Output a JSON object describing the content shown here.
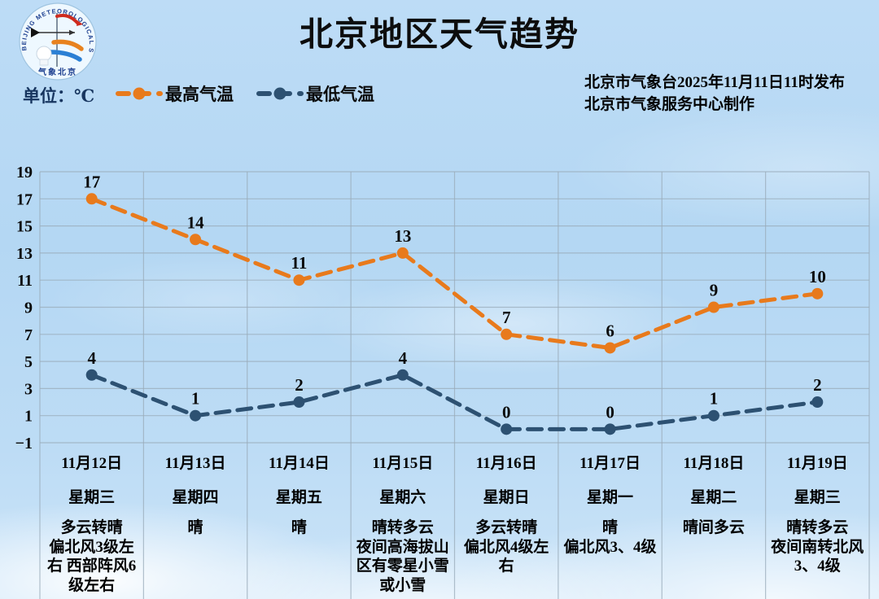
{
  "header": {
    "title": "北京地区天气趋势",
    "issued_line1": "北京市气象台2025年11月11日11时发布",
    "issued_line2": "北京市气象服务中心制作",
    "unit_label": "单位：℃",
    "logo": {
      "ring_text": "BEIJING METEOROLOGICAL SERVICE",
      "bottom_text": "气象北京"
    }
  },
  "legend": [
    {
      "label": "最高气温",
      "color": "#E87A1C"
    },
    {
      "label": "最低气温",
      "color": "#2D5172"
    }
  ],
  "chart_data": {
    "type": "line",
    "title": "北京地区天气趋势",
    "unit": "℃",
    "line_style": "dashed",
    "grid": true,
    "legend_position": "top-left",
    "categories": [
      "11月12日",
      "11月13日",
      "11月14日",
      "11月15日",
      "11月16日",
      "11月17日",
      "11月18日",
      "11月19日"
    ],
    "series": [
      {
        "name": "最高气温",
        "color": "#E87A1C",
        "values": [
          17,
          14,
          11,
          13,
          7,
          6,
          9,
          10
        ]
      },
      {
        "name": "最低气温",
        "color": "#2D5172",
        "values": [
          4,
          1,
          2,
          4,
          0,
          0,
          1,
          2
        ]
      }
    ],
    "ylim": [
      -1,
      19
    ],
    "ytick_step": 2,
    "yticks": [
      {
        "value": 19,
        "label": "19"
      },
      {
        "value": 17,
        "label": "17"
      },
      {
        "value": 15,
        "label": "15"
      },
      {
        "value": 13,
        "label": "13"
      },
      {
        "value": 11,
        "label": "11"
      },
      {
        "value": 9,
        "label": "9"
      },
      {
        "value": 7,
        "label": "7"
      },
      {
        "value": 5,
        "label": "5"
      },
      {
        "value": 3,
        "label": "3"
      },
      {
        "value": 1,
        "label": "1"
      },
      {
        "value": -1,
        "label": "−1"
      }
    ]
  },
  "days": [
    {
      "date": "11月12日",
      "week": "星期三",
      "weather": "多云转晴\n偏北风3级左右  西部阵风6级左右"
    },
    {
      "date": "11月13日",
      "week": "星期四",
      "weather": "晴"
    },
    {
      "date": "11月14日",
      "week": "星期五",
      "weather": "晴"
    },
    {
      "date": "11月15日",
      "week": "星期六",
      "weather": "晴转多云\n夜间高海拔山区有零星小雪或小雪"
    },
    {
      "date": "11月16日",
      "week": "星期日",
      "weather": "多云转晴\n偏北风4级左右"
    },
    {
      "date": "11月17日",
      "week": "星期一",
      "weather": "晴\n偏北风3、4级"
    },
    {
      "date": "11月18日",
      "week": "星期二",
      "weather": "晴间多云"
    },
    {
      "date": "11月19日",
      "week": "星期三",
      "weather": "晴转多云\n夜间南转北风3、4级"
    }
  ],
  "colors": {
    "max_series": "#E87A1C",
    "min_series": "#2D5172",
    "grid_line": "#9aacba",
    "text": "#000000",
    "unit_text": "#17355f"
  }
}
